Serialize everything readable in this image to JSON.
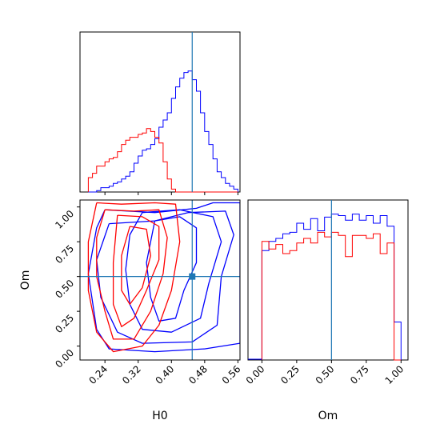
{
  "colors": {
    "series_a": "#0000ff",
    "series_b": "#ff0000",
    "truth": "#1f77b4",
    "frame": "#000000"
  },
  "chart_data": [
    {
      "type": "line",
      "panel": "H0 marginal histogram (step)",
      "xlim": [
        0.18,
        0.565
      ],
      "ylim": [
        0,
        1
      ],
      "x_edges": [
        0.2,
        0.21,
        0.22,
        0.23,
        0.24,
        0.25,
        0.26,
        0.27,
        0.28,
        0.29,
        0.3,
        0.31,
        0.32,
        0.33,
        0.34,
        0.35,
        0.36,
        0.37,
        0.38,
        0.39,
        0.4,
        0.41,
        0.42,
        0.43,
        0.44,
        0.45,
        0.46,
        0.47,
        0.48,
        0.49,
        0.5,
        0.51,
        0.52,
        0.53,
        0.54,
        0.55,
        0.56
      ],
      "series": [
        {
          "color_key": "series_a",
          "values": [
            0,
            0,
            0.01,
            0.03,
            0.03,
            0.04,
            0.06,
            0.07,
            0.09,
            0.11,
            0.14,
            0.2,
            0.25,
            0.29,
            0.3,
            0.33,
            0.37,
            0.45,
            0.5,
            0.55,
            0.65,
            0.73,
            0.79,
            0.83,
            0.84,
            0.78,
            0.7,
            0.55,
            0.42,
            0.33,
            0.23,
            0.14,
            0.1,
            0.06,
            0.04,
            0.02
          ]
        },
        {
          "color_key": "series_b",
          "values": [
            0.1,
            0.13,
            0.18,
            0.18,
            0.21,
            0.23,
            0.24,
            0.28,
            0.33,
            0.36,
            0.38,
            0.38,
            0.4,
            0.41,
            0.44,
            0.42,
            0.38,
            0.34,
            0.21,
            0.09,
            0.02,
            0,
            0,
            0,
            0,
            0,
            0,
            0,
            0,
            0,
            0,
            0,
            0,
            0,
            0,
            0
          ]
        }
      ],
      "truth_line_x": 0.45,
      "grid": false,
      "legend": "none"
    },
    {
      "type": "line",
      "panel": "H0 vs Om 2D contours",
      "xlabel": "H0",
      "ylabel": "Om",
      "xlim": [
        0.18,
        0.565
      ],
      "ylim": [
        -0.1,
        1.05
      ],
      "x_ticks": [
        0.24,
        0.32,
        0.4,
        0.48,
        0.56
      ],
      "x_tick_labels": [
        "0.24",
        "0.32",
        "0.40",
        "0.48",
        "0.56"
      ],
      "y_ticks": [
        0,
        0.25,
        0.5,
        0.75,
        1
      ],
      "y_tick_labels": [
        "0.00",
        "0.25",
        "0.50",
        "0.75",
        "1.00"
      ],
      "truth": {
        "H0": 0.45,
        "Om": 0.5
      },
      "contours": [
        {
          "color_key": "series_a",
          "points": [
            [
              0.24,
              0.98
            ],
            [
              0.36,
              0.96
            ],
            [
              0.46,
              0.99
            ],
            [
              0.5,
              1.03
            ],
            [
              0.565,
              1.03
            ],
            [
              0.565,
              0.02
            ],
            [
              0.48,
              -0.02
            ],
            [
              0.36,
              -0.04
            ],
            [
              0.25,
              -0.02
            ],
            [
              0.22,
              0.12
            ],
            [
              0.2,
              0.52
            ],
            [
              0.22,
              0.85
            ],
            [
              0.24,
              0.98
            ]
          ]
        },
        {
          "color_key": "series_a",
          "points": [
            [
              0.25,
              0.88
            ],
            [
              0.36,
              0.9
            ],
            [
              0.44,
              0.96
            ],
            [
              0.53,
              0.97
            ],
            [
              0.55,
              0.8
            ],
            [
              0.52,
              0.5
            ],
            [
              0.51,
              0.15
            ],
            [
              0.45,
              0.03
            ],
            [
              0.33,
              0.02
            ],
            [
              0.27,
              0.1
            ],
            [
              0.23,
              0.35
            ],
            [
              0.22,
              0.62
            ],
            [
              0.25,
              0.88
            ]
          ]
        },
        {
          "color_key": "series_a",
          "points": [
            [
              0.33,
              0.96
            ],
            [
              0.42,
              0.98
            ],
            [
              0.5,
              0.93
            ],
            [
              0.52,
              0.75
            ],
            [
              0.49,
              0.45
            ],
            [
              0.47,
              0.2
            ],
            [
              0.4,
              0.1
            ],
            [
              0.33,
              0.12
            ],
            [
              0.3,
              0.3
            ],
            [
              0.29,
              0.55
            ],
            [
              0.3,
              0.8
            ],
            [
              0.33,
              0.96
            ]
          ]
        },
        {
          "color_key": "series_a",
          "points": [
            [
              0.36,
              0.9
            ],
            [
              0.42,
              0.93
            ],
            [
              0.46,
              0.85
            ],
            [
              0.46,
              0.6
            ],
            [
              0.43,
              0.4
            ],
            [
              0.41,
              0.2
            ],
            [
              0.37,
              0.18
            ],
            [
              0.35,
              0.35
            ],
            [
              0.34,
              0.6
            ],
            [
              0.36,
              0.9
            ]
          ]
        },
        {
          "color_key": "series_b",
          "points": [
            [
              0.22,
              1.03
            ],
            [
              0.28,
              1.02
            ],
            [
              0.36,
              1.03
            ],
            [
              0.41,
              1.02
            ],
            [
              0.42,
              0.75
            ],
            [
              0.4,
              0.4
            ],
            [
              0.37,
              0.15
            ],
            [
              0.33,
              0.0
            ],
            [
              0.26,
              -0.04
            ],
            [
              0.22,
              0.1
            ],
            [
              0.2,
              0.4
            ],
            [
              0.2,
              0.75
            ],
            [
              0.22,
              1.03
            ]
          ]
        },
        {
          "color_key": "series_b",
          "points": [
            [
              0.24,
              0.98
            ],
            [
              0.31,
              0.97
            ],
            [
              0.37,
              0.98
            ],
            [
              0.39,
              0.78
            ],
            [
              0.38,
              0.52
            ],
            [
              0.35,
              0.25
            ],
            [
              0.31,
              0.05
            ],
            [
              0.26,
              0.05
            ],
            [
              0.24,
              0.25
            ],
            [
              0.22,
              0.5
            ],
            [
              0.22,
              0.78
            ],
            [
              0.24,
              0.98
            ]
          ]
        },
        {
          "color_key": "series_b",
          "points": [
            [
              0.27,
              0.94
            ],
            [
              0.33,
              0.93
            ],
            [
              0.37,
              0.86
            ],
            [
              0.37,
              0.62
            ],
            [
              0.34,
              0.4
            ],
            [
              0.31,
              0.2
            ],
            [
              0.28,
              0.14
            ],
            [
              0.26,
              0.3
            ],
            [
              0.26,
              0.6
            ],
            [
              0.27,
              0.94
            ]
          ]
        },
        {
          "color_key": "series_b",
          "points": [
            [
              0.3,
              0.86
            ],
            [
              0.34,
              0.84
            ],
            [
              0.35,
              0.65
            ],
            [
              0.33,
              0.42
            ],
            [
              0.3,
              0.3
            ],
            [
              0.28,
              0.4
            ],
            [
              0.28,
              0.65
            ],
            [
              0.3,
              0.86
            ]
          ]
        }
      ],
      "grid": false,
      "legend": "none"
    },
    {
      "type": "line",
      "panel": "Om marginal histogram (step)",
      "xlabel": "Om",
      "xlim": [
        -0.1,
        1.05
      ],
      "ylim": [
        0,
        1
      ],
      "x_ticks": [
        0,
        0.25,
        0.5,
        0.75,
        1
      ],
      "x_tick_labels": [
        "0.00",
        "0.25",
        "0.50",
        "0.75",
        "1.00"
      ],
      "x_edges": [
        0.0,
        0.05,
        0.1,
        0.15,
        0.2,
        0.25,
        0.3,
        0.35,
        0.4,
        0.45,
        0.5,
        0.55,
        0.6,
        0.65,
        0.7,
        0.75,
        0.8,
        0.85,
        0.9,
        0.95,
        1.0
      ],
      "series": [
        {
          "color_key": "series_a",
          "values": [
            0.72,
            0.78,
            0.8,
            0.83,
            0.84,
            0.9,
            0.86,
            0.93,
            0.85,
            0.94,
            0.96,
            0.95,
            0.92,
            0.96,
            0.92,
            0.95,
            0.9,
            0.95,
            0.88,
            0.25
          ]
        },
        {
          "color_key": "series_b",
          "values": [
            0.78,
            0.73,
            0.76,
            0.7,
            0.72,
            0.77,
            0.8,
            0.77,
            0.84,
            0.81,
            0.84,
            0.82,
            0.68,
            0.82,
            0.82,
            0.8,
            0.83,
            0.7,
            0.77,
            0.0
          ]
        }
      ],
      "truth_line_x": 0.5,
      "grid": false,
      "legend": "none"
    }
  ]
}
